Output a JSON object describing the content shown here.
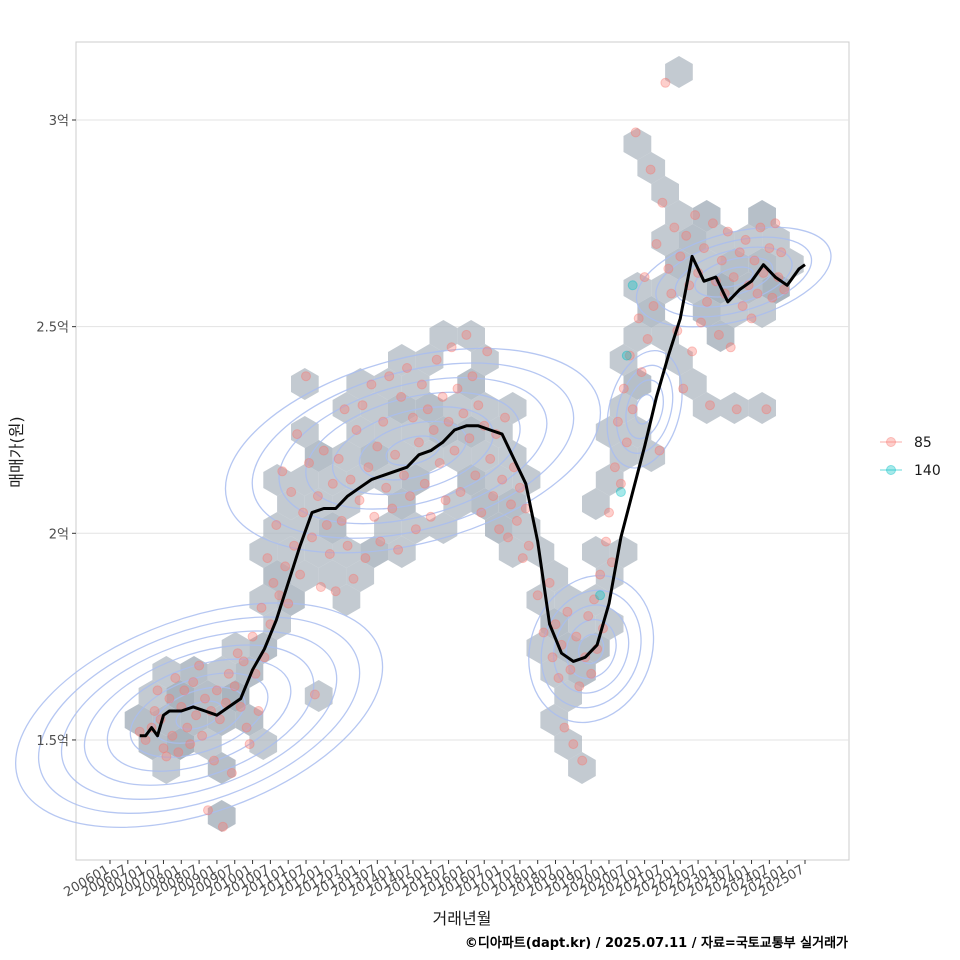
{
  "chart_data": {
    "type": "scatter",
    "xlabel": "거래년월",
    "ylabel": "매매가(원)",
    "caption": "©디아파트(dapt.kr) / 2025.07.11 / 자료=국토교통부 실거래가",
    "x_range": [
      "2006-01",
      "2025-07"
    ],
    "ylim": [
      1.2,
      3.18
    ],
    "y_ticks": [
      {
        "value": 1.5,
        "label": "1.5억"
      },
      {
        "value": 2.0,
        "label": "2억"
      },
      {
        "value": 2.5,
        "label": "2.5억"
      },
      {
        "value": 3.0,
        "label": "3억"
      }
    ],
    "x_ticks": [
      "200601",
      "200607",
      "200701",
      "200707",
      "200801",
      "200807",
      "200901",
      "200907",
      "201001",
      "201007",
      "201101",
      "201107",
      "201201",
      "201207",
      "201301",
      "201307",
      "201401",
      "201407",
      "201501",
      "201507",
      "201601",
      "201607",
      "201701",
      "201707",
      "201801",
      "201807",
      "201901",
      "201907",
      "202001",
      "202007",
      "202101",
      "202107",
      "202201",
      "202207",
      "202301",
      "202307",
      "202401",
      "202407",
      "202501",
      "202507"
    ],
    "legend": {
      "placement": "right",
      "entries": [
        {
          "label": "85",
          "color": "#F8766D"
        },
        {
          "label": "140",
          "color": "#00BFC4"
        }
      ]
    },
    "grid": true,
    "colors": {
      "trend": "#000000",
      "density": "#A9BDF0",
      "hex": "#A9B4BE"
    },
    "trend_line": {
      "x": [
        "2006-11",
        "2007-01",
        "2007-03",
        "2007-05",
        "2007-07",
        "2007-09",
        "2008-01",
        "2008-05",
        "2008-09",
        "2009-01",
        "2009-05",
        "2009-09",
        "2010-01",
        "2010-05",
        "2010-09",
        "2011-01",
        "2011-05",
        "2011-09",
        "2012-01",
        "2012-05",
        "2012-09",
        "2013-01",
        "2013-05",
        "2013-09",
        "2014-01",
        "2014-05",
        "2014-09",
        "2015-01",
        "2015-05",
        "2015-09",
        "2016-01",
        "2016-05",
        "2016-09",
        "2017-01",
        "2017-05",
        "2017-09",
        "2018-01",
        "2018-05",
        "2018-09",
        "2019-01",
        "2019-05",
        "2019-09",
        "2020-01",
        "2020-05",
        "2020-09",
        "2021-01",
        "2021-05",
        "2021-09",
        "2022-01",
        "2022-05",
        "2022-09",
        "2023-01",
        "2023-05",
        "2023-09",
        "2024-01",
        "2024-05",
        "2024-09",
        "2025-01",
        "2025-05",
        "2025-07"
      ],
      "y": [
        1.51,
        1.51,
        1.53,
        1.51,
        1.56,
        1.57,
        1.57,
        1.58,
        1.57,
        1.56,
        1.58,
        1.6,
        1.67,
        1.72,
        1.79,
        1.88,
        1.97,
        2.05,
        2.06,
        2.06,
        2.09,
        2.11,
        2.13,
        2.14,
        2.15,
        2.16,
        2.19,
        2.2,
        2.22,
        2.25,
        2.26,
        2.26,
        2.25,
        2.24,
        2.18,
        2.12,
        1.98,
        1.78,
        1.71,
        1.69,
        1.7,
        1.73,
        1.83,
        1.99,
        2.1,
        2.21,
        2.33,
        2.43,
        2.52,
        2.67,
        2.61,
        2.62,
        2.56,
        2.59,
        2.61,
        2.65,
        2.62,
        2.6,
        2.64,
        2.65
      ]
    },
    "series": [
      {
        "name": "85",
        "color": "#F8766D",
        "points": [
          [
            "2006-11",
            1.52
          ],
          [
            "2007-01",
            1.5
          ],
          [
            "2007-03",
            1.53
          ],
          [
            "2007-04",
            1.57
          ],
          [
            "2007-05",
            1.62
          ],
          [
            "2007-06",
            1.55
          ],
          [
            "2007-07",
            1.48
          ],
          [
            "2007-08",
            1.46
          ],
          [
            "2007-09",
            1.6
          ],
          [
            "2007-10",
            1.51
          ],
          [
            "2007-11",
            1.65
          ],
          [
            "2007-12",
            1.47
          ],
          [
            "2008-01",
            1.58
          ],
          [
            "2008-02",
            1.62
          ],
          [
            "2008-03",
            1.53
          ],
          [
            "2008-04",
            1.49
          ],
          [
            "2008-05",
            1.64
          ],
          [
            "2008-06",
            1.56
          ],
          [
            "2008-07",
            1.68
          ],
          [
            "2008-08",
            1.51
          ],
          [
            "2008-09",
            1.6
          ],
          [
            "2008-10",
            1.33
          ],
          [
            "2008-11",
            1.57
          ],
          [
            "2008-12",
            1.45
          ],
          [
            "2009-01",
            1.62
          ],
          [
            "2009-02",
            1.55
          ],
          [
            "2009-03",
            1.29
          ],
          [
            "2009-04",
            1.59
          ],
          [
            "2009-05",
            1.66
          ],
          [
            "2009-06",
            1.42
          ],
          [
            "2009-07",
            1.63
          ],
          [
            "2009-08",
            1.71
          ],
          [
            "2009-09",
            1.58
          ],
          [
            "2009-10",
            1.69
          ],
          [
            "2009-11",
            1.53
          ],
          [
            "2009-12",
            1.49
          ],
          [
            "2010-01",
            1.75
          ],
          [
            "2010-02",
            1.66
          ],
          [
            "2010-03",
            1.57
          ],
          [
            "2010-04",
            1.82
          ],
          [
            "2010-05",
            1.7
          ],
          [
            "2010-06",
            1.94
          ],
          [
            "2010-07",
            1.78
          ],
          [
            "2010-08",
            1.88
          ],
          [
            "2010-09",
            2.02
          ],
          [
            "2010-10",
            1.85
          ],
          [
            "2010-11",
            2.15
          ],
          [
            "2010-12",
            1.92
          ],
          [
            "2011-01",
            1.83
          ],
          [
            "2011-02",
            2.1
          ],
          [
            "2011-03",
            1.97
          ],
          [
            "2011-04",
            2.24
          ],
          [
            "2011-05",
            1.9
          ],
          [
            "2011-06",
            2.05
          ],
          [
            "2011-07",
            2.38
          ],
          [
            "2011-08",
            2.17
          ],
          [
            "2011-09",
            1.99
          ],
          [
            "2011-10",
            1.61
          ],
          [
            "2011-11",
            2.09
          ],
          [
            "2011-12",
            1.87
          ],
          [
            "2012-01",
            2.2
          ],
          [
            "2012-02",
            2.02
          ],
          [
            "2012-03",
            1.95
          ],
          [
            "2012-04",
            2.12
          ],
          [
            "2012-05",
            1.86
          ],
          [
            "2012-06",
            2.18
          ],
          [
            "2012-07",
            2.03
          ],
          [
            "2012-08",
            2.3
          ],
          [
            "2012-09",
            1.97
          ],
          [
            "2012-10",
            2.13
          ],
          [
            "2012-11",
            1.89
          ],
          [
            "2012-12",
            2.25
          ],
          [
            "2013-01",
            2.08
          ],
          [
            "2013-02",
            2.31
          ],
          [
            "2013-03",
            1.94
          ],
          [
            "2013-04",
            2.16
          ],
          [
            "2013-05",
            2.36
          ],
          [
            "2013-06",
            2.04
          ],
          [
            "2013-07",
            2.21
          ],
          [
            "2013-08",
            1.98
          ],
          [
            "2013-09",
            2.27
          ],
          [
            "2013-10",
            2.11
          ],
          [
            "2013-11",
            2.38
          ],
          [
            "2013-12",
            2.06
          ],
          [
            "2014-01",
            2.19
          ],
          [
            "2014-02",
            1.96
          ],
          [
            "2014-03",
            2.33
          ],
          [
            "2014-04",
            2.14
          ],
          [
            "2014-05",
            2.4
          ],
          [
            "2014-06",
            2.09
          ],
          [
            "2014-07",
            2.28
          ],
          [
            "2014-08",
            2.01
          ],
          [
            "2014-09",
            2.22
          ],
          [
            "2014-10",
            2.36
          ],
          [
            "2014-11",
            2.12
          ],
          [
            "2014-12",
            2.3
          ],
          [
            "2015-01",
            2.04
          ],
          [
            "2015-02",
            2.25
          ],
          [
            "2015-03",
            2.42
          ],
          [
            "2015-04",
            2.17
          ],
          [
            "2015-05",
            2.33
          ],
          [
            "2015-06",
            2.08
          ],
          [
            "2015-07",
            2.27
          ],
          [
            "2015-08",
            2.45
          ],
          [
            "2015-09",
            2.2
          ],
          [
            "2015-10",
            2.35
          ],
          [
            "2015-11",
            2.1
          ],
          [
            "2015-12",
            2.29
          ],
          [
            "2016-01",
            2.48
          ],
          [
            "2016-02",
            2.23
          ],
          [
            "2016-03",
            2.38
          ],
          [
            "2016-04",
            2.14
          ],
          [
            "2016-05",
            2.31
          ],
          [
            "2016-06",
            2.05
          ],
          [
            "2016-07",
            2.26
          ],
          [
            "2016-08",
            2.44
          ],
          [
            "2016-09",
            2.18
          ],
          [
            "2016-10",
            2.09
          ],
          [
            "2016-11",
            2.24
          ],
          [
            "2016-12",
            2.01
          ],
          [
            "2017-01",
            2.13
          ],
          [
            "2017-02",
            2.28
          ],
          [
            "2017-03",
            1.99
          ],
          [
            "2017-04",
            2.07
          ],
          [
            "2017-05",
            2.16
          ],
          [
            "2017-06",
            2.03
          ],
          [
            "2017-07",
            2.11
          ],
          [
            "2017-08",
            1.94
          ],
          [
            "2017-09",
            2.06
          ],
          [
            "2017-10",
            1.97
          ],
          [
            "2018-01",
            1.85
          ],
          [
            "2018-03",
            1.76
          ],
          [
            "2018-05",
            1.88
          ],
          [
            "2018-06",
            1.7
          ],
          [
            "2018-07",
            1.78
          ],
          [
            "2018-08",
            1.65
          ],
          [
            "2018-09",
            1.73
          ],
          [
            "2018-10",
            1.53
          ],
          [
            "2018-11",
            1.81
          ],
          [
            "2018-12",
            1.67
          ],
          [
            "2019-01",
            1.49
          ],
          [
            "2019-02",
            1.75
          ],
          [
            "2019-03",
            1.63
          ],
          [
            "2019-04",
            1.45
          ],
          [
            "2019-05",
            1.7
          ],
          [
            "2019-06",
            1.8
          ],
          [
            "2019-07",
            1.66
          ],
          [
            "2019-08",
            1.84
          ],
          [
            "2019-09",
            1.72
          ],
          [
            "2019-10",
            1.9
          ],
          [
            "2019-11",
            1.77
          ],
          [
            "2019-12",
            1.98
          ],
          [
            "2020-01",
            2.05
          ],
          [
            "2020-02",
            1.93
          ],
          [
            "2020-03",
            2.16
          ],
          [
            "2020-04",
            2.27
          ],
          [
            "2020-05",
            2.12
          ],
          [
            "2020-06",
            2.35
          ],
          [
            "2020-07",
            2.22
          ],
          [
            "2020-08",
            2.43
          ],
          [
            "2020-09",
            2.3
          ],
          [
            "2020-10",
            2.97
          ],
          [
            "2020-11",
            2.52
          ],
          [
            "2020-12",
            2.39
          ],
          [
            "2021-01",
            2.62
          ],
          [
            "2021-02",
            2.47
          ],
          [
            "2021-03",
            2.88
          ],
          [
            "2021-04",
            2.55
          ],
          [
            "2021-05",
            2.7
          ],
          [
            "2021-06",
            2.2
          ],
          [
            "2021-07",
            2.8
          ],
          [
            "2021-08",
            3.09
          ],
          [
            "2021-09",
            2.64
          ],
          [
            "2021-10",
            2.58
          ],
          [
            "2021-11",
            2.74
          ],
          [
            "2021-12",
            2.49
          ],
          [
            "2022-01",
            2.67
          ],
          [
            "2022-02",
            2.35
          ],
          [
            "2022-03",
            2.72
          ],
          [
            "2022-04",
            2.6
          ],
          [
            "2022-05",
            2.44
          ],
          [
            "2022-06",
            2.77
          ],
          [
            "2022-07",
            2.63
          ],
          [
            "2022-08",
            2.51
          ],
          [
            "2022-09",
            2.69
          ],
          [
            "2022-10",
            2.56
          ],
          [
            "2022-11",
            2.31
          ],
          [
            "2022-12",
            2.75
          ],
          [
            "2023-01",
            2.61
          ],
          [
            "2023-02",
            2.48
          ],
          [
            "2023-03",
            2.66
          ],
          [
            "2023-04",
            2.58
          ],
          [
            "2023-05",
            2.73
          ],
          [
            "2023-06",
            2.45
          ],
          [
            "2023-07",
            2.62
          ],
          [
            "2023-08",
            2.3
          ],
          [
            "2023-09",
            2.68
          ],
          [
            "2023-10",
            2.55
          ],
          [
            "2023-11",
            2.71
          ],
          [
            "2023-12",
            2.6
          ],
          [
            "2024-01",
            2.52
          ],
          [
            "2024-02",
            2.66
          ],
          [
            "2024-03",
            2.58
          ],
          [
            "2024-04",
            2.74
          ],
          [
            "2024-05",
            2.63
          ],
          [
            "2024-06",
            2.3
          ],
          [
            "2024-07",
            2.69
          ],
          [
            "2024-08",
            2.57
          ],
          [
            "2024-09",
            2.75
          ],
          [
            "2024-10",
            2.62
          ],
          [
            "2024-11",
            2.68
          ],
          [
            "2024-12",
            2.59
          ]
        ]
      },
      {
        "name": "140",
        "color": "#00BFC4",
        "points": [
          [
            "2019-10",
            1.85
          ],
          [
            "2020-05",
            2.1
          ],
          [
            "2020-07",
            2.43
          ],
          [
            "2020-09",
            2.6
          ]
        ]
      }
    ]
  }
}
